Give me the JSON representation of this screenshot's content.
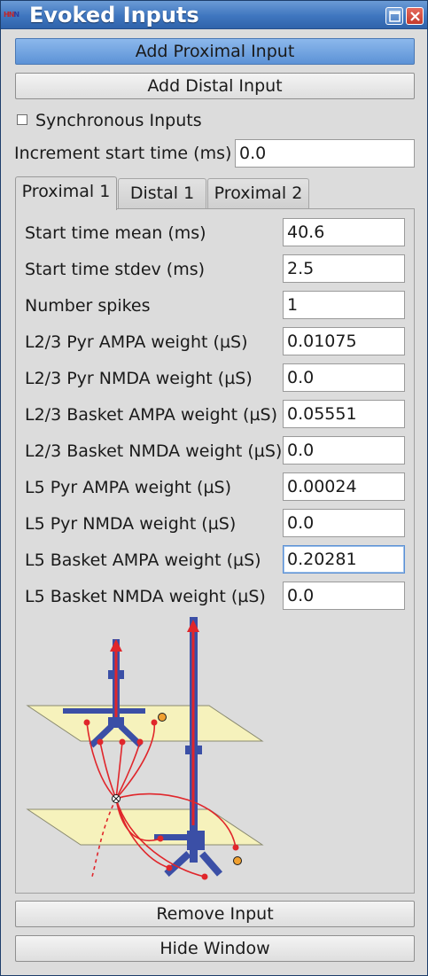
{
  "window": {
    "title": "Evoked Inputs",
    "app_icon_text_red": "HN",
    "app_icon_text_blue": "N"
  },
  "buttons": {
    "add_proximal": "Add Proximal Input",
    "add_distal": "Add Distal Input",
    "remove_input": "Remove Input",
    "hide_window": "Hide Window"
  },
  "sync": {
    "label": "Synchronous Inputs",
    "checked": false
  },
  "increment": {
    "label": "Increment start time (ms)",
    "value": "0.0"
  },
  "tabs": [
    {
      "label": "Proximal 1",
      "selected": true
    },
    {
      "label": "Distal 1",
      "selected": false
    },
    {
      "label": "Proximal 2",
      "selected": false
    }
  ],
  "fields": [
    {
      "label": "Start time mean (ms)",
      "value": "40.6"
    },
    {
      "label": "Start time stdev (ms)",
      "value": "2.5"
    },
    {
      "label": "Number spikes",
      "value": "1"
    },
    {
      "label": "L2/3 Pyr AMPA weight (µS)",
      "value": "0.01075"
    },
    {
      "label": "L2/3 Pyr NMDA weight (µS)",
      "value": "0.0"
    },
    {
      "label": "L2/3 Basket AMPA weight (µS)",
      "value": "0.05551"
    },
    {
      "label": "L2/3 Basket NMDA weight (µS)",
      "value": "0.0"
    },
    {
      "label": "L5 Pyr AMPA weight (µS)",
      "value": "0.00024"
    },
    {
      "label": "L5 Pyr NMDA weight (µS)",
      "value": "0.0"
    },
    {
      "label": "L5 Basket AMPA weight (µS)",
      "value": "0.20281"
    },
    {
      "label": "L5 Basket NMDA weight (µS)",
      "value": "0.0"
    }
  ],
  "colors": {
    "accent": "#5c92d6",
    "neuron": "#3b4fa6",
    "input_arrow": "#e0262b",
    "layer_plane": "#f6f2bc",
    "basket_cell": "#f0a030"
  }
}
